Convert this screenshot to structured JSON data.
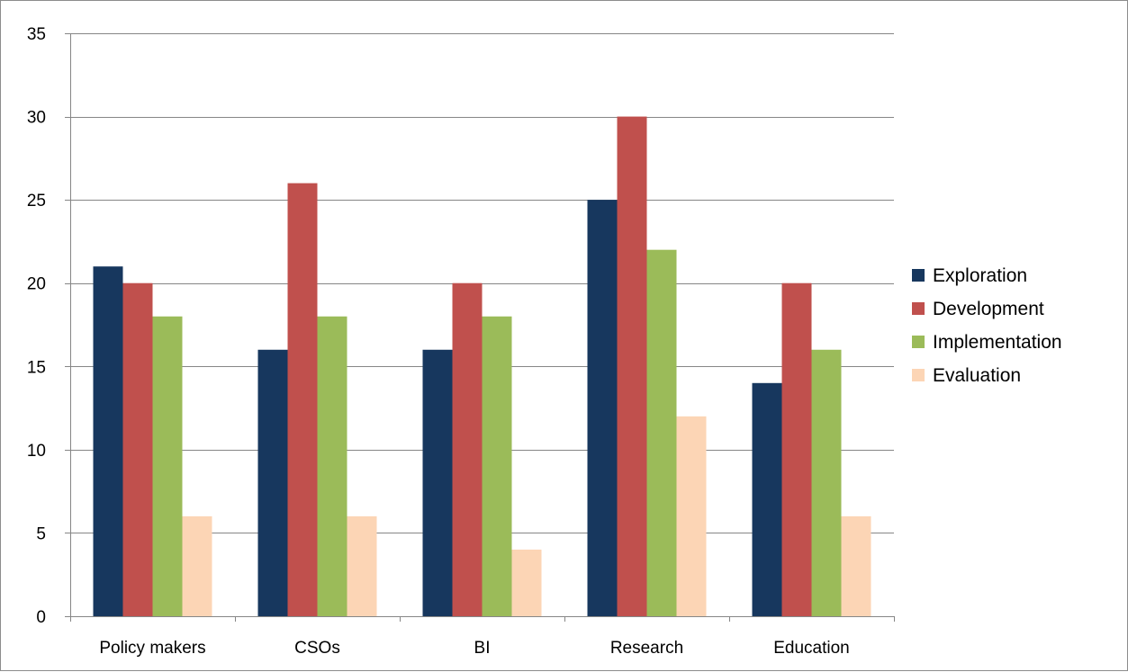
{
  "chart_data": {
    "type": "bar",
    "categories": [
      "Policy makers",
      "CSOs",
      "BI",
      "Research",
      "Education"
    ],
    "series": [
      {
        "name": "Exploration",
        "color": "#17375e",
        "values": [
          21,
          16,
          16,
          25,
          14
        ]
      },
      {
        "name": "Development",
        "color": "#c0504d",
        "values": [
          20,
          26,
          20,
          30,
          20
        ]
      },
      {
        "name": "Implementation",
        "color": "#9bbb59",
        "values": [
          18,
          18,
          18,
          22,
          16
        ]
      },
      {
        "name": "Evaluation",
        "color": "#fcd5b5",
        "values": [
          6,
          6,
          4,
          12,
          6
        ]
      }
    ],
    "title": "",
    "xlabel": "",
    "ylabel": "",
    "ylim": [
      0,
      35
    ],
    "yticks": [
      0,
      5,
      10,
      15,
      20,
      25,
      30,
      35
    ],
    "grid": true,
    "legend_position": "right",
    "gridline_color": "#868686",
    "axis_color": "#868686"
  }
}
